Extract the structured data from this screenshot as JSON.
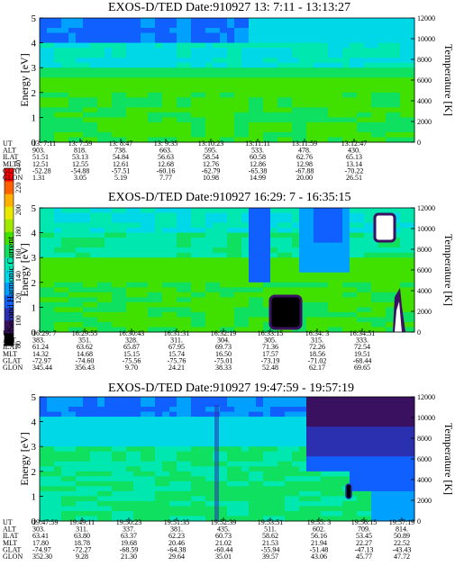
{
  "colors": {
    "scale": [
      "#000000",
      "#3a1060",
      "#2a30b0",
      "#1060ff",
      "#00a0ff",
      "#00d8e8",
      "#00e8b0",
      "#10e060",
      "#40e000",
      "#a0e800",
      "#e8e800",
      "#ffb000",
      "#ff6000",
      "#ff0000"
    ]
  },
  "colorbar": {
    "label": "Second Harmonic Current",
    "ticks": [
      "240",
      "220",
      "200",
      "180",
      "160",
      "140",
      "120",
      "100",
      "80"
    ]
  },
  "chart_data": [
    {
      "type": "heatmap",
      "title": "EXOS-D/TED   Date:910927  13: 7:11 - 13:13:27",
      "ylabel": "Energy [eV]",
      "y2label": "Temperature [K]",
      "ylim": [
        0,
        5
      ],
      "y2lim": [
        0,
        12000
      ],
      "yticks": [
        "0",
        "1",
        "2",
        "3",
        "4",
        "5"
      ],
      "y2ticks": [
        "0",
        "2000",
        "4000",
        "6000",
        "8000",
        "10000",
        "12000"
      ],
      "ephemeris": {
        "labels": [
          "UT",
          "ALT",
          "ILAT",
          "MLT",
          "GLAT",
          "GLON"
        ],
        "columns": [
          [
            "13: 7:11",
            "903.",
            "51.51",
            "12.51",
            "-52.28",
            "1.31"
          ],
          [
            "13: 7:59",
            "818.",
            "53.13",
            "12.55",
            "-54.88",
            "3.05"
          ],
          [
            "13: 8:47",
            "738.",
            "54.84",
            "12.61",
            "-57.51",
            "5.19"
          ],
          [
            "13: 9:35",
            "663.",
            "56.63",
            "12.68",
            "-60.16",
            "7.77"
          ],
          [
            "13:10:23",
            "595.",
            "58.54",
            "12.76",
            "-62.79",
            "10.98"
          ],
          [
            "13:11:11",
            "533.",
            "60.58",
            "12.86",
            "-65.38",
            "14.99"
          ],
          [
            "13:11:59",
            "478.",
            "62.76",
            "12.98",
            "-67.88",
            "20.00"
          ],
          [
            "13:12:47",
            "430.",
            "65.13",
            "13.14",
            "-70.22",
            "26.51"
          ]
        ]
      }
    },
    {
      "type": "heatmap",
      "title": "EXOS-D/TED   Date:910927  16:29: 7 - 16:35:15",
      "ylabel": "Energy [eV]",
      "y2label": "Temperature [K]",
      "ylim": [
        0,
        5
      ],
      "y2lim": [
        0,
        12000
      ],
      "yticks": [
        "0",
        "1",
        "2",
        "3",
        "4",
        "5"
      ],
      "y2ticks": [
        "0",
        "2000",
        "4000",
        "6000",
        "8000",
        "10000",
        "12000"
      ],
      "ephemeris": {
        "labels": [
          "UT",
          "ALT",
          "ILAT",
          "MLT",
          "GLAT",
          "GLON"
        ],
        "columns": [
          [
            "16:29: 7",
            "383.",
            "61.24",
            "14.32",
            "-72.97",
            "345.44"
          ],
          [
            "16:29:55",
            "351.",
            "63.62",
            "14.68",
            "-74.60",
            "356.43"
          ],
          [
            "16:30:43",
            "328.",
            "65.87",
            "15.15",
            "-75.56",
            "9.70"
          ],
          [
            "16:31:31",
            "311.",
            "67.95",
            "15.74",
            "-75.76",
            "24.21"
          ],
          [
            "16:32:19",
            "304.",
            "69.73",
            "16.50",
            "-75.01",
            "38.33"
          ],
          [
            "16:33:15",
            "305.",
            "71.36",
            "17.57",
            "-73.19",
            "52.48"
          ],
          [
            "16:34: 3",
            "315.",
            "72.26",
            "18.56",
            "-71.02",
            "62.17"
          ],
          [
            "16:34:51",
            "333.",
            "72.54",
            "19.51",
            "-68.44",
            "69.65"
          ]
        ]
      }
    },
    {
      "type": "heatmap",
      "title": "EXOS-D/TED   Date:910927  19:47:59 - 19:57:19",
      "ylabel": "Energy [eV]",
      "y2label": "Temperature [K]",
      "ylim": [
        0,
        5
      ],
      "y2lim": [
        0,
        12000
      ],
      "yticks": [
        "0",
        "1",
        "2",
        "3",
        "4",
        "5"
      ],
      "y2ticks": [
        "0",
        "2000",
        "4000",
        "6000",
        "8000",
        "10000",
        "12000"
      ],
      "ephemeris": {
        "labels": [
          "UT",
          "ALT",
          "ILAT",
          "MLT",
          "GLAT",
          "GLON"
        ],
        "columns": [
          [
            "19:47:59",
            "303.",
            "63.41",
            "17.80",
            "-74.97",
            "352.30"
          ],
          [
            "19:49:11",
            "311.",
            "63.80",
            "18.78",
            "-72.27",
            "9.28"
          ],
          [
            "19:50:23",
            "337.",
            "63.37",
            "19.68",
            "-68.59",
            "21.30"
          ],
          [
            "19:51:35",
            "381.",
            "62.23",
            "20.46",
            "-64.38",
            "29.64"
          ],
          [
            "19:52:39",
            "435.",
            "60.73",
            "21.02",
            "-60.44",
            "35.01"
          ],
          [
            "19:53:51",
            "511.",
            "58.62",
            "21.53",
            "-55.94",
            "39.57"
          ],
          [
            "19:55: 3",
            "602.",
            "56.16",
            "21.94",
            "-51.48",
            "43.06"
          ],
          [
            "19:56:15",
            "709.",
            "53.45",
            "22.27",
            "-47.13",
            "45.77"
          ],
          [
            "19:57:19",
            "814.",
            "50.89",
            "22.52",
            "-43.43",
            "47.72"
          ]
        ]
      }
    }
  ]
}
